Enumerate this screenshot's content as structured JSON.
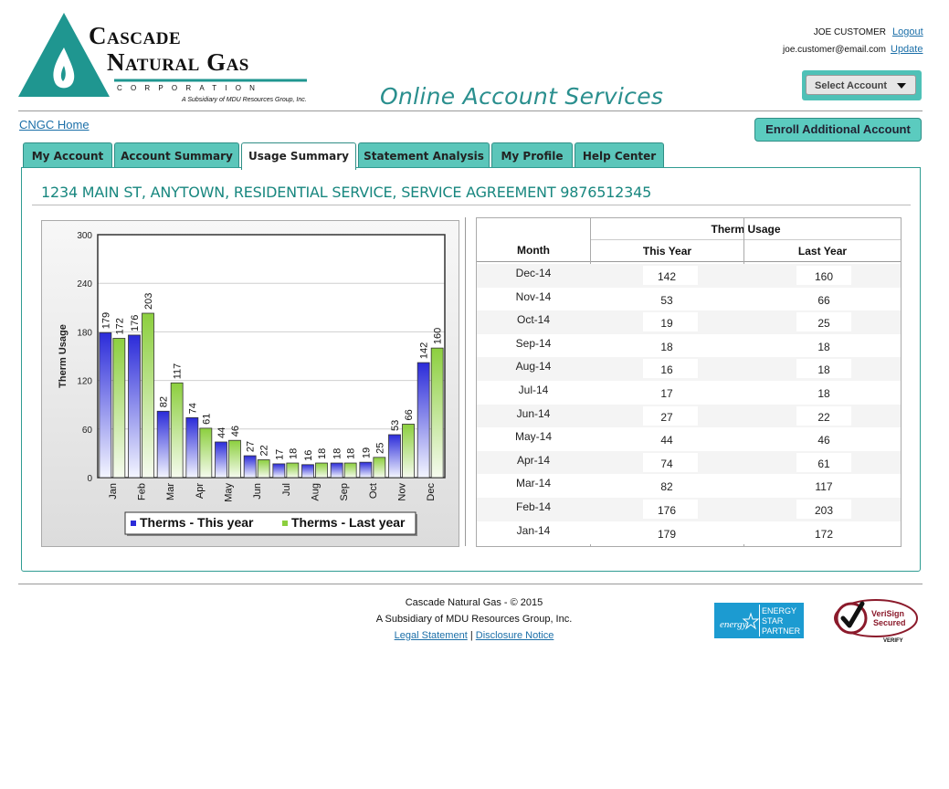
{
  "logo": {
    "name_line1": "Cascade",
    "name_line2": "Natural Gas",
    "corp": "CORPORATION",
    "subsidiary": "A Subsidiary of MDU Resources Group, Inc."
  },
  "header": {
    "title": "Online Account Services",
    "user_name": "JOE CUSTOMER",
    "logout_label": "Logout",
    "user_email": "joe.customer@email.com",
    "update_label": "Update",
    "select_account_label": "Select Account"
  },
  "nav": {
    "home_link": "CNGC Home",
    "enroll_button": "Enroll Additional Account",
    "tabs": [
      {
        "label": "My Account",
        "active": false
      },
      {
        "label": "Account Summary",
        "active": false
      },
      {
        "label": "Usage Summary",
        "active": true
      },
      {
        "label": "Statement Analysis",
        "active": false
      },
      {
        "label": "My Profile",
        "active": false
      },
      {
        "label": "Help Center",
        "active": false
      }
    ]
  },
  "service_address": "1234 MAIN ST, ANYTOWN, RESIDENTIAL SERVICE, SERVICE AGREEMENT 9876512345",
  "chart_data": {
    "type": "bar",
    "ylabel": "Therm Usage",
    "ylim": [
      0,
      300
    ],
    "yticks": [
      0,
      60,
      120,
      180,
      240,
      300
    ],
    "categories": [
      "Jan",
      "Feb",
      "Mar",
      "Apr",
      "May",
      "Jun",
      "Jul",
      "Aug",
      "Sep",
      "Oct",
      "Nov",
      "Dec"
    ],
    "series": [
      {
        "name": "Therms - This year",
        "color": "#2b2bd9",
        "values": [
          179,
          176,
          82,
          74,
          44,
          27,
          17,
          16,
          18,
          19,
          53,
          142
        ]
      },
      {
        "name": "Therms - Last year",
        "color": "#8ccf3e",
        "values": [
          172,
          203,
          117,
          61,
          46,
          22,
          18,
          18,
          18,
          25,
          66,
          160
        ]
      }
    ],
    "grid": true,
    "legend_position": "bottom"
  },
  "usage_table": {
    "group_header": "Therm Usage",
    "col_month": "Month",
    "col_this_year": "This Year",
    "col_last_year": "Last Year",
    "rows": [
      {
        "month": "Dec-14",
        "this_year": "142",
        "last_year": "160"
      },
      {
        "month": "Nov-14",
        "this_year": "53",
        "last_year": "66"
      },
      {
        "month": "Oct-14",
        "this_year": "19",
        "last_year": "25"
      },
      {
        "month": "Sep-14",
        "this_year": "18",
        "last_year": "18"
      },
      {
        "month": "Aug-14",
        "this_year": "16",
        "last_year": "18"
      },
      {
        "month": "Jul-14",
        "this_year": "17",
        "last_year": "18"
      },
      {
        "month": "Jun-14",
        "this_year": "27",
        "last_year": "22"
      },
      {
        "month": "May-14",
        "this_year": "44",
        "last_year": "46"
      },
      {
        "month": "Apr-14",
        "this_year": "74",
        "last_year": "61"
      },
      {
        "month": "Mar-14",
        "this_year": "82",
        "last_year": "117"
      },
      {
        "month": "Feb-14",
        "this_year": "176",
        "last_year": "203"
      },
      {
        "month": "Jan-14",
        "this_year": "179",
        "last_year": "172"
      }
    ]
  },
  "footer": {
    "line1": "Cascade Natural Gas - © 2015",
    "line2": "A Subsidiary of MDU Resources Group, Inc.",
    "legal_link": "Legal Statement",
    "separator": "|",
    "disclosure_link": "Disclosure Notice",
    "energy_star": [
      "ENERGY",
      "STAR",
      "PARTNER"
    ],
    "energy_script": "energy",
    "verisign": [
      "VeriSign",
      "Secured"
    ],
    "verisign_verify": "VERIFY"
  },
  "colors": {
    "teal": "#2a8f8e",
    "tab_bg": "#5bc6ba",
    "link": "#1b6fa8",
    "this_year": "#2b2bd9",
    "last_year": "#8ccf3e"
  }
}
